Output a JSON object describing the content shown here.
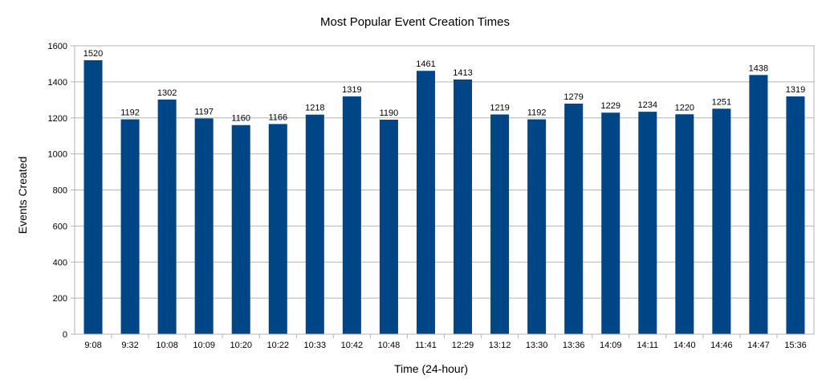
{
  "chart_data": {
    "type": "bar",
    "title": "Most Popular Event Creation Times",
    "xlabel": "Time (24-hour)",
    "ylabel": "Events Created",
    "ylim": [
      0,
      1600
    ],
    "yticks": [
      0,
      200,
      400,
      600,
      800,
      1000,
      1200,
      1400,
      1600
    ],
    "grid": true,
    "legend": "none",
    "bar_color": "#004586",
    "categories": [
      "9:08",
      "9:32",
      "10:08",
      "10:09",
      "10:20",
      "10:22",
      "10:33",
      "10:42",
      "10:48",
      "11:41",
      "12:29",
      "13:12",
      "13:30",
      "13:36",
      "14:09",
      "14:11",
      "14:40",
      "14:46",
      "14:47",
      "15:36"
    ],
    "values": [
      1520,
      1192,
      1302,
      1197,
      1160,
      1166,
      1218,
      1319,
      1190,
      1461,
      1413,
      1219,
      1192,
      1279,
      1229,
      1234,
      1220,
      1251,
      1438,
      1319
    ]
  }
}
